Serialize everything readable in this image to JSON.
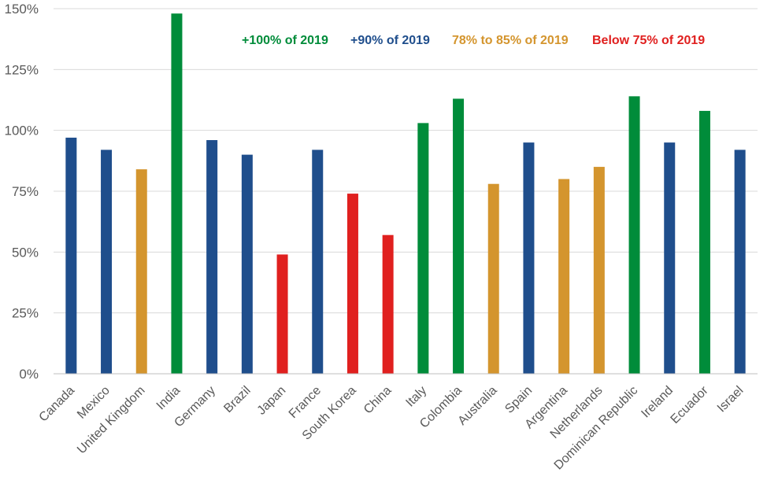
{
  "chart_data": {
    "type": "bar",
    "title": "",
    "xlabel": "",
    "ylabel": "",
    "ylim": [
      0,
      150
    ],
    "yticks": [
      0,
      25,
      50,
      75,
      100,
      125,
      150
    ],
    "ytick_labels": [
      "0%",
      "25%",
      "50%",
      "75%",
      "100%",
      "125%",
      "150%"
    ],
    "grid": true,
    "legend_position": "top-right",
    "legend": [
      {
        "label": "+100% of 2019",
        "color": "#008c3a",
        "group": "green"
      },
      {
        "label": "+90% of 2019",
        "color": "#1f4e8c",
        "group": "blue"
      },
      {
        "label": "78% to 85% of 2019",
        "color": "#d4952e",
        "group": "orange"
      },
      {
        "label": "Below 75% of 2019",
        "color": "#e0201f",
        "group": "red"
      }
    ],
    "categories": [
      "Canada",
      "Mexico",
      "United Kingdom",
      "India",
      "Germany",
      "Brazil",
      "Japan",
      "France",
      "South Korea",
      "China",
      "Italy",
      "Colombia",
      "Australia",
      "Spain",
      "Argentina",
      "Netherlands",
      "Dominican Republic",
      "Ireland",
      "Ecuador",
      "Israel"
    ],
    "values": [
      97,
      92,
      84,
      148,
      96,
      90,
      49,
      92,
      74,
      57,
      103,
      113,
      78,
      95,
      80,
      85,
      114,
      95,
      108,
      92
    ],
    "groups": [
      "blue",
      "blue",
      "orange",
      "green",
      "blue",
      "blue",
      "red",
      "blue",
      "red",
      "red",
      "green",
      "green",
      "orange",
      "blue",
      "orange",
      "orange",
      "green",
      "blue",
      "green",
      "blue"
    ]
  }
}
